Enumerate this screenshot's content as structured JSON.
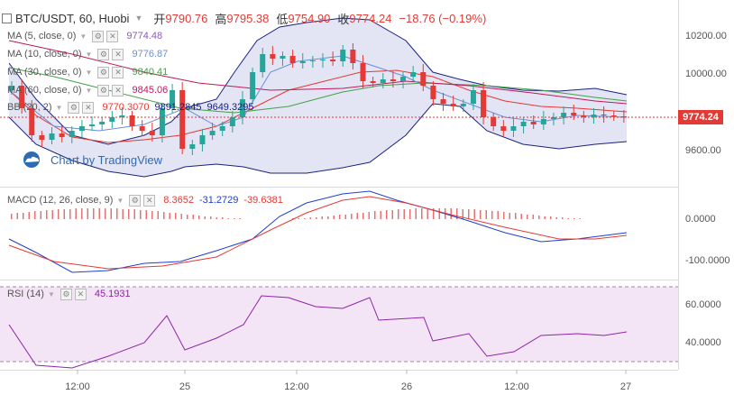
{
  "header": {
    "symbol": "BTC/USDT, 60, Huobi",
    "open_label": "开",
    "open": "9790.76",
    "high_label": "高",
    "high": "9795.38",
    "low_label": "低",
    "low": "9754.90",
    "close_label": "收",
    "close": "9774.24",
    "change": "−18.76 (−0.19%)"
  },
  "indicators": {
    "ma5": {
      "name": "MA (5, close, 0)",
      "value": "9774.48",
      "color": "#8e5bb5"
    },
    "ma10": {
      "name": "MA (10, close, 0)",
      "value": "9776.87",
      "color": "#6a8fd6"
    },
    "ma30": {
      "name": "MA (30, close, 0)",
      "value": "9840.41",
      "color": "#43a047"
    },
    "ma60": {
      "name": "MA (60, close, 0)",
      "value": "9845.06",
      "color": "#c2185b"
    },
    "bb": {
      "name": "BB (20, 2)",
      "basis": "9770.3070",
      "upper": "9891.2845",
      "lower": "9649.3295",
      "color_basis": "#e53935",
      "color_band": "#1a237e"
    },
    "macd": {
      "name": "MACD (12, 26, close, 9)",
      "hist": "8.3652",
      "macd": "-31.2729",
      "signal": "-39.6381"
    },
    "rsi": {
      "name": "RSI (14)",
      "value": "45.1931",
      "color": "#8e24aa"
    }
  },
  "watermark": "Chart by TradingView",
  "price_axis": {
    "labels": [
      "10200.00",
      "10000.00",
      "9600.00"
    ],
    "last_price": "9774.24"
  },
  "macd_axis": {
    "labels": [
      "0.0000",
      "-100.0000"
    ]
  },
  "rsi_axis": {
    "labels": [
      "60.0000",
      "40.0000"
    ]
  },
  "time_axis": {
    "labels": [
      "12:00",
      "25",
      "12:00",
      "26",
      "12:00",
      "27"
    ]
  },
  "colors": {
    "up": "#26a69a",
    "down": "#e53935",
    "band_fill": "#e3e4f4",
    "rsi_fill": "#f3e5f5"
  }
}
